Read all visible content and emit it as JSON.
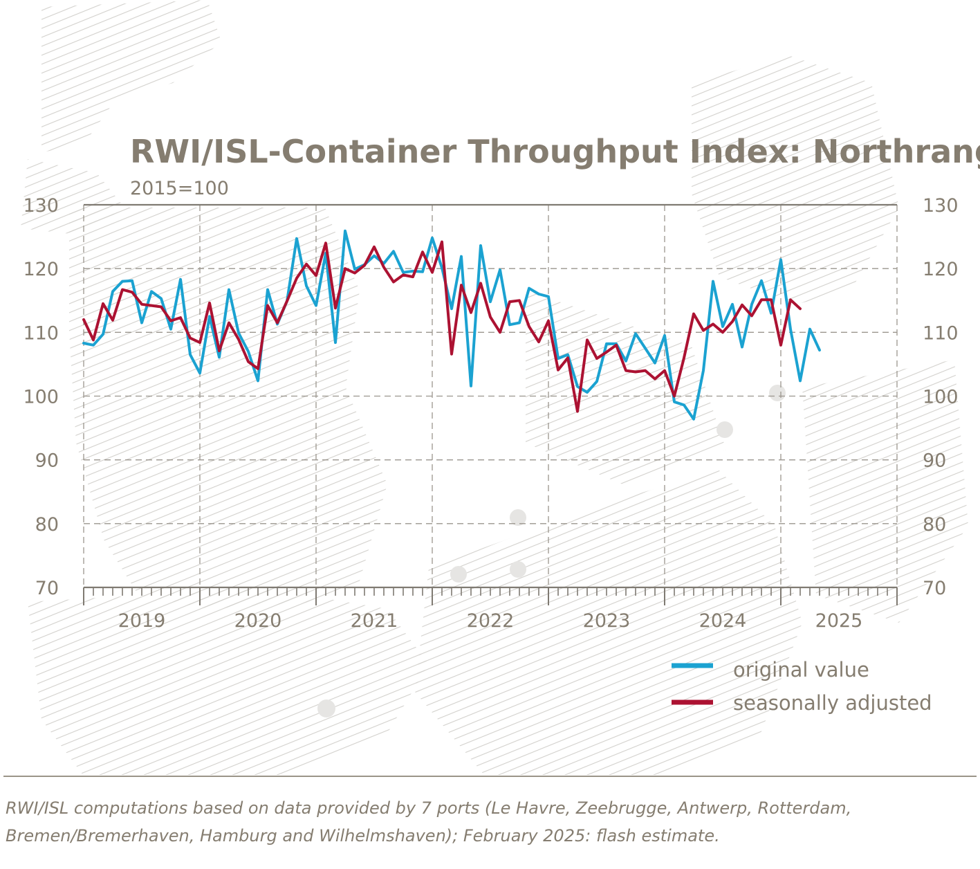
{
  "colors": {
    "original": "#1ba2d1",
    "seasonal": "#ac1232",
    "text": "#857d70",
    "axis": "#7f7a72"
  },
  "chart_data": {
    "type": "line",
    "title": "RWI/ISL-Container Throughput Index: Northrange",
    "subtitle": "2015=100",
    "ylim": [
      70,
      130
    ],
    "y_ticks": [
      "130",
      "120",
      "110",
      "100",
      "90",
      "80",
      "70"
    ],
    "x_tick_labels": [
      "2019",
      "2020",
      "2021",
      "2022",
      "2023",
      "2024",
      "2025"
    ],
    "x_range": [
      "2019-01",
      "2025-12"
    ],
    "grid": true,
    "legend_position": "bottom-right",
    "series": [
      {
        "name": "original value",
        "color": "#1ba2d1",
        "start": "2019-01",
        "values": [
          108.3,
          108.0,
          109.7,
          116.4,
          118.0,
          118.1,
          111.5,
          116.4,
          115.3,
          110.5,
          118.3,
          106.5,
          103.6,
          112.5,
          106.1,
          116.7,
          109.9,
          107.0,
          102.4,
          116.7,
          111.3,
          114.9,
          124.7,
          117.3,
          114.2,
          122.4,
          108.4,
          125.9,
          119.9,
          120.6,
          122.0,
          120.8,
          122.7,
          119.4,
          119.6,
          119.5,
          124.8,
          120.1,
          113.7,
          121.9,
          101.6,
          123.6,
          114.8,
          119.8,
          111.2,
          111.5,
          116.9,
          116.0,
          115.6,
          105.9,
          106.5,
          101.5,
          100.6,
          102.3,
          108.2,
          108.2,
          105.5,
          109.8,
          107.5,
          105.2,
          109.5,
          99.1,
          98.6,
          96.4,
          104.0,
          118.0,
          110.9,
          114.4,
          107.7,
          114.4,
          118.1,
          113.0,
          121.4,
          110.5,
          102.4,
          110.5,
          107.2
        ]
      },
      {
        "name": "seasonally adjusted",
        "color": "#ac1232",
        "start": "2019-01",
        "values": [
          112.0,
          108.8,
          114.5,
          111.9,
          116.7,
          116.3,
          114.4,
          114.2,
          114.0,
          111.8,
          112.3,
          109.1,
          108.4,
          114.6,
          107.1,
          111.5,
          108.9,
          105.4,
          104.3,
          114.2,
          111.5,
          114.9,
          118.5,
          120.7,
          118.9,
          124.0,
          113.8,
          120.0,
          119.3,
          120.5,
          123.4,
          120.2,
          117.9,
          119.0,
          118.7,
          122.6,
          119.4,
          124.2,
          106.6,
          117.4,
          113.1,
          117.7,
          112.4,
          110.0,
          114.8,
          115.0,
          110.9,
          108.5,
          111.8,
          104.1,
          106.0,
          97.6,
          108.8,
          105.9,
          106.9,
          108.0,
          104.0,
          103.8,
          104.0,
          102.7,
          104.0,
          100.0,
          106.0,
          112.9,
          110.3,
          111.3,
          110.0,
          111.7,
          114.3,
          112.6,
          115.1,
          115.1,
          108.0,
          115.1,
          113.7
        ]
      }
    ],
    "legend": [
      {
        "label": "original value",
        "color": "#1ba2d1"
      },
      {
        "label": "seasonally adjusted",
        "color": "#ac1232"
      }
    ]
  },
  "source_note": "RWI/ISL computations based on data provided by 7 ports (Le Havre, Zeebrugge, Antwerp, Rotterdam, Bremen/Bremerhaven, Hamburg and Wilhelmshaven); February 2025: flash estimate."
}
